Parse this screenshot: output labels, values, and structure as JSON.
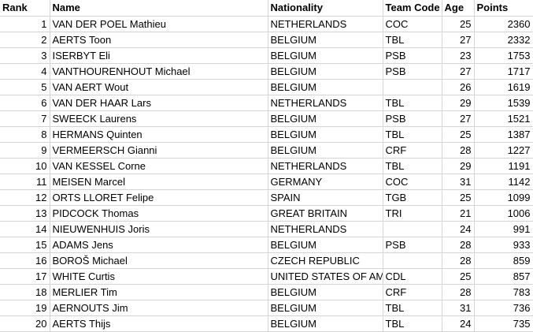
{
  "headers": {
    "rank": "Rank",
    "name": "Name",
    "nationality": "Nationality",
    "team_code": "Team Code",
    "age": "Age",
    "points": "Points"
  },
  "rows": [
    {
      "rank": "1",
      "name": "VAN DER POEL Mathieu",
      "nationality": "NETHERLANDS",
      "team_code": "COC",
      "age": "25",
      "points": "2360"
    },
    {
      "rank": "2",
      "name": "AERTS Toon",
      "nationality": "BELGIUM",
      "team_code": "TBL",
      "age": "27",
      "points": "2332"
    },
    {
      "rank": "3",
      "name": "ISERBYT Eli",
      "nationality": "BELGIUM",
      "team_code": "PSB",
      "age": "23",
      "points": "1753"
    },
    {
      "rank": "4",
      "name": "VANTHOURENHOUT Michael",
      "nationality": "BELGIUM",
      "team_code": "PSB",
      "age": "27",
      "points": "1717"
    },
    {
      "rank": "5",
      "name": "VAN AERT Wout",
      "nationality": "BELGIUM",
      "team_code": "",
      "age": "26",
      "points": "1619"
    },
    {
      "rank": "6",
      "name": "VAN DER HAAR Lars",
      "nationality": "NETHERLANDS",
      "team_code": "TBL",
      "age": "29",
      "points": "1539"
    },
    {
      "rank": "7",
      "name": "SWEECK Laurens",
      "nationality": "BELGIUM",
      "team_code": "PSB",
      "age": "27",
      "points": "1521"
    },
    {
      "rank": "8",
      "name": "HERMANS Quinten",
      "nationality": "BELGIUM",
      "team_code": "TBL",
      "age": "25",
      "points": "1387"
    },
    {
      "rank": "9",
      "name": "VERMEERSCH Gianni",
      "nationality": "BELGIUM",
      "team_code": "CRF",
      "age": "28",
      "points": "1227"
    },
    {
      "rank": "10",
      "name": "VAN KESSEL Corne",
      "nationality": "NETHERLANDS",
      "team_code": "TBL",
      "age": "29",
      "points": "1191"
    },
    {
      "rank": "11",
      "name": "MEISEN Marcel",
      "nationality": "GERMANY",
      "team_code": "COC",
      "age": "31",
      "points": "1142"
    },
    {
      "rank": "12",
      "name": "ORTS LLORET Felipe",
      "nationality": "SPAIN",
      "team_code": "TGB",
      "age": "25",
      "points": "1099"
    },
    {
      "rank": "13",
      "name": "PIDCOCK Thomas",
      "nationality": "GREAT BRITAIN",
      "team_code": "TRI",
      "age": "21",
      "points": "1006"
    },
    {
      "rank": "14",
      "name": "NIEUWENHUIS Joris",
      "nationality": "NETHERLANDS",
      "team_code": "",
      "age": "24",
      "points": "991"
    },
    {
      "rank": "15",
      "name": "ADAMS Jens",
      "nationality": "BELGIUM",
      "team_code": "PSB",
      "age": "28",
      "points": "933"
    },
    {
      "rank": "16",
      "name": "BOROŠ Michael",
      "nationality": "CZECH REPUBLIC",
      "team_code": "",
      "age": "28",
      "points": "859"
    },
    {
      "rank": "17",
      "name": "WHITE Curtis",
      "nationality": "UNITED STATES OF AME",
      "team_code": "CDL",
      "age": "25",
      "points": "857"
    },
    {
      "rank": "18",
      "name": "MERLIER Tim",
      "nationality": "BELGIUM",
      "team_code": "CRF",
      "age": "28",
      "points": "783"
    },
    {
      "rank": "19",
      "name": "AERNOUTS Jim",
      "nationality": "BELGIUM",
      "team_code": "TBL",
      "age": "31",
      "points": "736"
    },
    {
      "rank": "20",
      "name": "AERTS Thijs",
      "nationality": "BELGIUM",
      "team_code": "TBL",
      "age": "24",
      "points": "735"
    }
  ],
  "colors": {
    "gridline": "#d4d4d4",
    "text": "#000000",
    "background": "#ffffff"
  }
}
